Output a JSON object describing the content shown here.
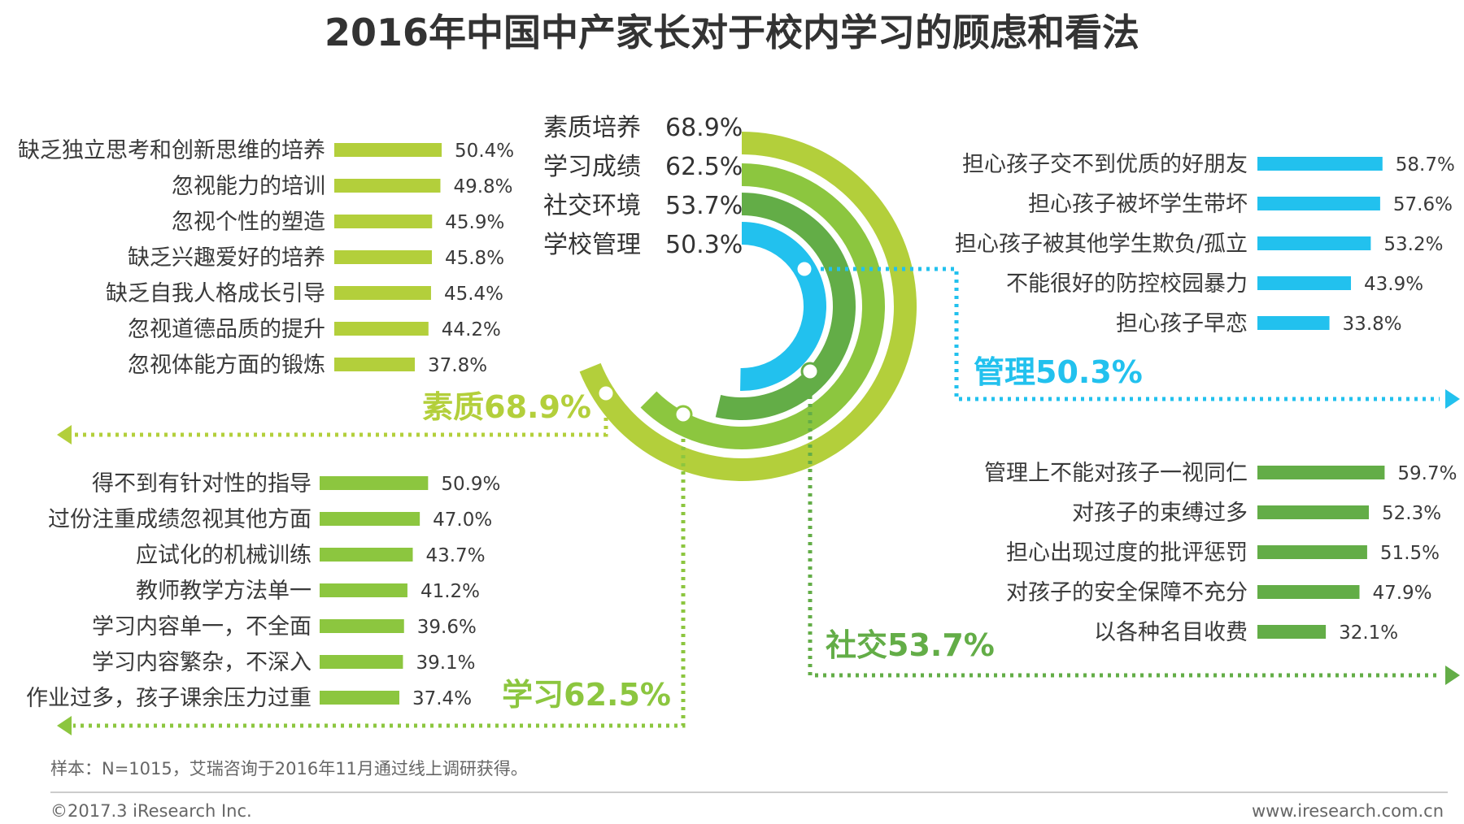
{
  "title": "2016年中国中产家长对于校内学习的顾虑和看法",
  "colors": {
    "lime": "#b3cf3b",
    "lightgreen": "#8cc63f",
    "green": "#63ad47",
    "blue": "#22c1ee",
    "text": "#3a3a3a"
  },
  "chart_data": [
    {
      "type": "radial-bar",
      "title": "",
      "unit": "%",
      "categories": [
        {
          "label": "素质培养",
          "value": 68.9,
          "value_text": "68.9%"
        },
        {
          "label": "学习成绩",
          "value": 62.5,
          "value_text": "62.5%"
        },
        {
          "label": "社交环境",
          "value": 53.7,
          "value_text": "53.7%"
        },
        {
          "label": "学校管理",
          "value": 50.3,
          "value_text": "50.3%"
        }
      ]
    },
    {
      "type": "bar",
      "group_label": "素质68.9%",
      "unit": "%",
      "categories": [
        "缺乏独立思考和创新思维的培养",
        "忽视能力的培训",
        "忽视个性的塑造",
        "缺乏兴趣爱好的培养",
        "缺乏自我人格成长引导",
        "忽视道德品质的提升",
        "忽视体能方面的锻炼"
      ],
      "values": [
        50.4,
        49.8,
        45.9,
        45.8,
        45.4,
        44.2,
        37.8
      ],
      "value_labels": [
        "50.4%",
        "49.8%",
        "45.9%",
        "45.8%",
        "45.4%",
        "44.2%",
        "37.8%"
      ]
    },
    {
      "type": "bar",
      "group_label": "学习62.5%",
      "unit": "%",
      "categories": [
        "得不到有针对性的指导",
        "过份注重成绩忽视其他方面",
        "应试化的机械训练",
        "教师教学方法单一",
        "学习内容单一，不全面",
        "学习内容繁杂，不深入",
        "作业过多，孩子课余压力过重"
      ],
      "values": [
        50.9,
        47.0,
        43.7,
        41.2,
        39.6,
        39.1,
        37.4
      ],
      "value_labels": [
        "50.9%",
        "47.0%",
        "43.7%",
        "41.2%",
        "39.6%",
        "39.1%",
        "37.4%"
      ]
    },
    {
      "type": "bar",
      "group_label": "管理50.3%",
      "unit": "%",
      "categories": [
        "担心孩子交不到优质的好朋友",
        "担心孩子被坏学生带坏",
        "担心孩子被其他学生欺负/孤立",
        "不能很好的防控校园暴力",
        "担心孩子早恋"
      ],
      "values": [
        58.7,
        57.6,
        53.2,
        43.9,
        33.8
      ],
      "value_labels": [
        "58.7%",
        "57.6%",
        "53.2%",
        "43.9%",
        "33.8%"
      ]
    },
    {
      "type": "bar",
      "group_label": "社交53.7%",
      "unit": "%",
      "categories": [
        "管理上不能对孩子一视同仁",
        "对孩子的束缚过多",
        "担心出现过度的批评惩罚",
        "对孩子的安全保障不充分",
        "以各种名目收费"
      ],
      "values": [
        59.7,
        52.3,
        51.5,
        47.9,
        32.1
      ],
      "value_labels": [
        "59.7%",
        "52.3%",
        "51.5%",
        "47.9%",
        "32.1%"
      ]
    }
  ],
  "note": "样本：N=1015，艾瑞咨询于2016年11月通过线上调研获得。",
  "footer": {
    "copyright": "©2017.3  iResearch Inc.",
    "website": "www.iresearch.com.cn"
  }
}
